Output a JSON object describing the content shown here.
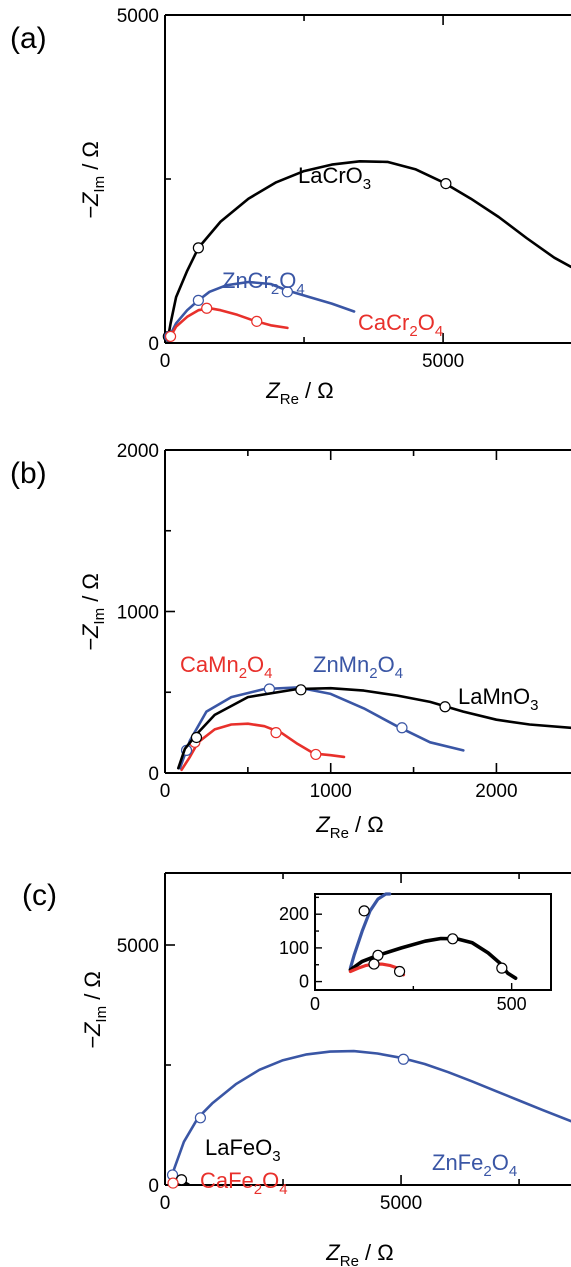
{
  "colors": {
    "black": "#000000",
    "blue": "#3a56a5",
    "red": "#e8302b"
  },
  "chart_data": [
    {
      "type": "line",
      "panel_label": "(a)",
      "xlabel": {
        "main": "Z",
        "sub": "Re",
        "unit": " / Ω"
      },
      "ylabel": {
        "main": "−Z",
        "sub": "Im",
        "unit": " / Ω"
      },
      "xlim": [
        0,
        7300
      ],
      "ylim": [
        0,
        5000
      ],
      "xticks": [
        0,
        5000
      ],
      "yticks": [
        0,
        5000
      ],
      "series": [
        {
          "label": {
            "main": "LaCrO",
            "sub": "3",
            "tail": ""
          },
          "color": "black",
          "x": [
            60,
            100,
            200,
            400,
            600,
            1000,
            1500,
            2000,
            2500,
            3000,
            3500,
            4000,
            4500,
            5000,
            5500,
            6000,
            6500,
            7000,
            7300
          ],
          "y": [
            100,
            300,
            700,
            1100,
            1450,
            1850,
            2200,
            2450,
            2620,
            2720,
            2770,
            2760,
            2650,
            2450,
            2200,
            1920,
            1600,
            1300,
            1160
          ],
          "markers": [
            [
              60,
              100
            ],
            [
              600,
              1450
            ],
            [
              5050,
              2430
            ]
          ]
        },
        {
          "label": {
            "main": "ZnCr",
            "sub": "2",
            "tail": "O",
            "sub2": "4"
          },
          "color": "blue",
          "x": [
            80,
            200,
            400,
            600,
            800,
            1100,
            1500,
            1900,
            2200,
            2600,
            3000,
            3400
          ],
          "y": [
            100,
            300,
            500,
            650,
            780,
            880,
            930,
            900,
            800,
            700,
            600,
            480
          ],
          "markers": [
            [
              80,
              100
            ],
            [
              600,
              650
            ],
            [
              2200,
              780
            ]
          ]
        },
        {
          "label": {
            "main": "CaCr",
            "sub": "2",
            "tail": "O",
            "sub2": "4"
          },
          "color": "red",
          "x": [
            100,
            200,
            400,
            600,
            800,
            1000,
            1300,
            1600,
            1900,
            2200
          ],
          "y": [
            100,
            250,
            400,
            500,
            530,
            500,
            430,
            340,
            270,
            230
          ],
          "markers": [
            [
              100,
              100
            ],
            [
              750,
              530
            ],
            [
              1650,
              330
            ]
          ]
        }
      ]
    },
    {
      "type": "line",
      "panel_label": "(b)",
      "xlabel": {
        "main": "Z",
        "sub": "Re",
        "unit": " / Ω"
      },
      "ylabel": {
        "main": "−Z",
        "sub": "Im",
        "unit": " / Ω"
      },
      "xlim": [
        0,
        2450
      ],
      "ylim": [
        0,
        2000
      ],
      "xticks": [
        0,
        1000,
        2000
      ],
      "yticks": [
        0,
        1000,
        2000
      ],
      "series": [
        {
          "label": {
            "main": "CaMn",
            "sub": "2",
            "tail": "O",
            "sub2": "4"
          },
          "color": "red",
          "x": [
            100,
            150,
            200,
            300,
            400,
            500,
            600,
            700,
            800,
            900,
            1000,
            1080
          ],
          "y": [
            20,
            100,
            190,
            270,
            300,
            305,
            290,
            250,
            180,
            120,
            110,
            100
          ],
          "markers": [
            [
              180,
              190
            ],
            [
              670,
              250
            ],
            [
              910,
              115
            ]
          ]
        },
        {
          "label": {
            "main": "ZnMn",
            "sub": "2",
            "tail": "O",
            "sub2": "4"
          },
          "color": "blue",
          "x": [
            90,
            150,
            250,
            400,
            600,
            800,
            1000,
            1200,
            1400,
            1600,
            1800
          ],
          "y": [
            30,
            200,
            380,
            470,
            520,
            530,
            490,
            400,
            290,
            190,
            140
          ],
          "markers": [
            [
              130,
              140
            ],
            [
              630,
              520
            ],
            [
              1430,
              280
            ]
          ]
        },
        {
          "label": {
            "main": "LaMnO",
            "sub": "3",
            "tail": ""
          },
          "color": "black",
          "x": [
            80,
            120,
            200,
            300,
            500,
            800,
            1000,
            1200,
            1400,
            1600,
            1800,
            2000,
            2200,
            2450
          ],
          "y": [
            30,
            150,
            250,
            360,
            470,
            520,
            525,
            510,
            480,
            440,
            380,
            330,
            300,
            280
          ],
          "markers": [
            [
              190,
              220
            ],
            [
              820,
              515
            ],
            [
              1690,
              410
            ]
          ]
        }
      ]
    },
    {
      "type": "line",
      "panel_label": "(c)",
      "xlabel": {
        "main": "Z",
        "sub": "Re",
        "unit": " / Ω"
      },
      "ylabel": {
        "main": "−Z",
        "sub": "Im",
        "unit": " / Ω"
      },
      "xlim": [
        0,
        8600
      ],
      "ylim": [
        0,
        6500
      ],
      "xticks": [
        0,
        5000
      ],
      "yticks": [
        0,
        5000
      ],
      "series": [
        {
          "label": {
            "main": "ZnFe",
            "sub": "2",
            "tail": "O",
            "sub2": "4"
          },
          "color": "blue",
          "x": [
            100,
            200,
            400,
            700,
            1000,
            1500,
            2000,
            2500,
            3000,
            3500,
            4000,
            4500,
            5000,
            5500,
            6000,
            6500,
            7000,
            7500,
            8000,
            8600
          ],
          "y": [
            50,
            350,
            900,
            1400,
            1700,
            2100,
            2400,
            2600,
            2720,
            2780,
            2790,
            2740,
            2650,
            2520,
            2350,
            2160,
            1960,
            1760,
            1560,
            1330
          ],
          "markers": [
            [
              160,
              210
            ],
            [
              750,
              1400
            ],
            [
              5050,
              2620
            ]
          ]
        },
        {
          "label": {
            "main": "LaFeO",
            "sub": "3",
            "tail": ""
          },
          "color": "black",
          "x": [
            120,
            200,
            300,
            380,
            450,
            500
          ],
          "y": [
            40,
            100,
            120,
            100,
            40,
            10
          ],
          "markers": [
            [
              350,
              110
            ]
          ]
        },
        {
          "label": {
            "main": "CaFe",
            "sub": "2",
            "tail": "O",
            "sub2": "4"
          },
          "color": "red",
          "x": [
            100,
            150,
            200,
            250
          ],
          "y": [
            20,
            50,
            40,
            20
          ],
          "markers": [
            [
              170,
              40
            ]
          ]
        }
      ],
      "inset": {
        "xlim": [
          0,
          600
        ],
        "ylim": [
          -25,
          260
        ],
        "xticks": [
          0,
          500
        ],
        "yticks": [
          0,
          100,
          200
        ],
        "series": [
          {
            "color": "blue",
            "x": [
              90,
              100,
              120,
              140,
              160,
              180,
              190
            ],
            "y": [
              40,
              80,
              150,
              210,
              245,
              265,
              270
            ],
            "markers": [
              [
                125,
                210
              ]
            ],
            "width": 3.2
          },
          {
            "color": "black",
            "x": [
              90,
              120,
              160,
              220,
              280,
              320,
              360,
              400,
              440,
              470,
              490,
              510
            ],
            "y": [
              35,
              60,
              78,
              100,
              120,
              128,
              127,
              115,
              85,
              55,
              25,
              10
            ],
            "markers": [
              [
                160,
                78
              ],
              [
                350,
                127
              ],
              [
                475,
                40
              ]
            ],
            "width": 3.6
          },
          {
            "color": "red",
            "x": [
              90,
              110,
              130,
              150,
              170,
              190,
              210,
              220,
              225
            ],
            "y": [
              30,
              40,
              48,
              52,
              52,
              48,
              40,
              30,
              20
            ],
            "markers": [
              [
                150,
                52
              ],
              [
                215,
                30
              ]
            ],
            "width": 3.2
          }
        ]
      }
    }
  ]
}
